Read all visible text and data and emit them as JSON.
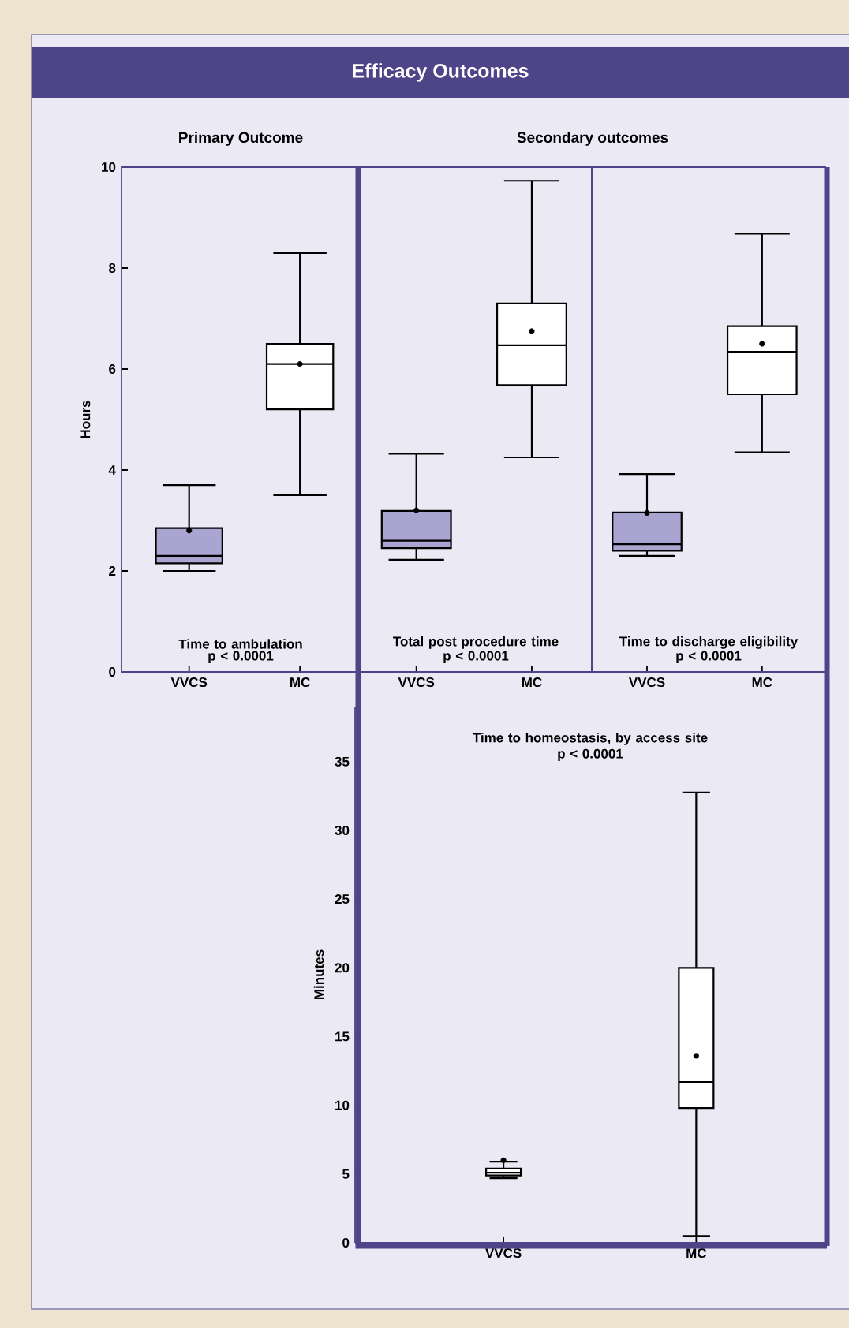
{
  "chart_data": [
    {
      "type": "box",
      "subtitle": "Primary Outcome",
      "ylabel": "Hours",
      "categories": [
        "VVCS",
        "MC"
      ],
      "colors": [
        "#aaa5d0",
        "#ffffff"
      ],
      "boxes": [
        {
          "low": 2.0,
          "q1": 2.15,
          "median": 2.3,
          "q3": 2.85,
          "high": 3.7,
          "mean": 2.8
        },
        {
          "low": 3.5,
          "q1": 5.2,
          "median": 6.1,
          "q3": 6.5,
          "high": 8.3,
          "mean": 6.1
        }
      ],
      "ylim": [
        0,
        10
      ],
      "yticks": [
        0,
        2,
        4,
        6,
        8,
        10
      ],
      "annotations": [
        "Time to ambulation",
        "p < 0.0001"
      ]
    },
    {
      "type": "box",
      "title": "Efficacy Outcomes",
      "subtitle": "Secondary outcomes",
      "categories": [
        "VVCS",
        "MC"
      ],
      "colors": [
        "#aaa5d0",
        "#ffffff"
      ],
      "boxes": [
        {
          "low": 2.22,
          "q1": 2.45,
          "median": 2.6,
          "q3": 3.19,
          "high": 4.32,
          "mean": 3.2
        },
        {
          "low": 4.25,
          "q1": 5.68,
          "median": 6.47,
          "q3": 7.3,
          "high": 9.73,
          "mean": 6.75
        }
      ],
      "ylim": [
        0,
        10
      ],
      "tick_labels": "x",
      "annotations": [
        "Total post procedure time",
        "p < 0.0001"
      ]
    },
    {
      "type": "box",
      "categories": [
        "VVCS",
        "MC"
      ],
      "colors": [
        "#aaa5d0",
        "#ffffff"
      ],
      "boxes": [
        {
          "low": 2.3,
          "q1": 2.4,
          "median": 2.53,
          "q3": 3.16,
          "high": 3.92,
          "mean": 3.15
        },
        {
          "low": 4.35,
          "q1": 5.5,
          "median": 6.34,
          "q3": 6.85,
          "high": 8.68,
          "mean": 6.5
        }
      ],
      "ylim": [
        0,
        10
      ],
      "tick_labels": "x",
      "annotations": [
        "Time to discharge eligibility",
        "p < 0.0001"
      ]
    },
    {
      "type": "box",
      "title": "Time to homeostasis, by access site",
      "ylabel": "Minutes",
      "categories": [
        "VVCS",
        "MC"
      ],
      "colors": [
        "#ffffff",
        "#ffffff"
      ],
      "boxes": [
        {
          "low": 4.7,
          "q1": 4.9,
          "median": 5.1,
          "q3": 5.4,
          "high": 5.9,
          "mean": 6.0
        },
        {
          "low": 0.5,
          "q1": 9.8,
          "median": 11.7,
          "q3": 20.0,
          "high": 32.75,
          "mean": 13.6
        }
      ],
      "ylim": [
        0,
        39
      ],
      "yticks": [
        0,
        5,
        10,
        15,
        20,
        25,
        30,
        35
      ],
      "annotations": [
        "p < 0.0001"
      ]
    }
  ]
}
